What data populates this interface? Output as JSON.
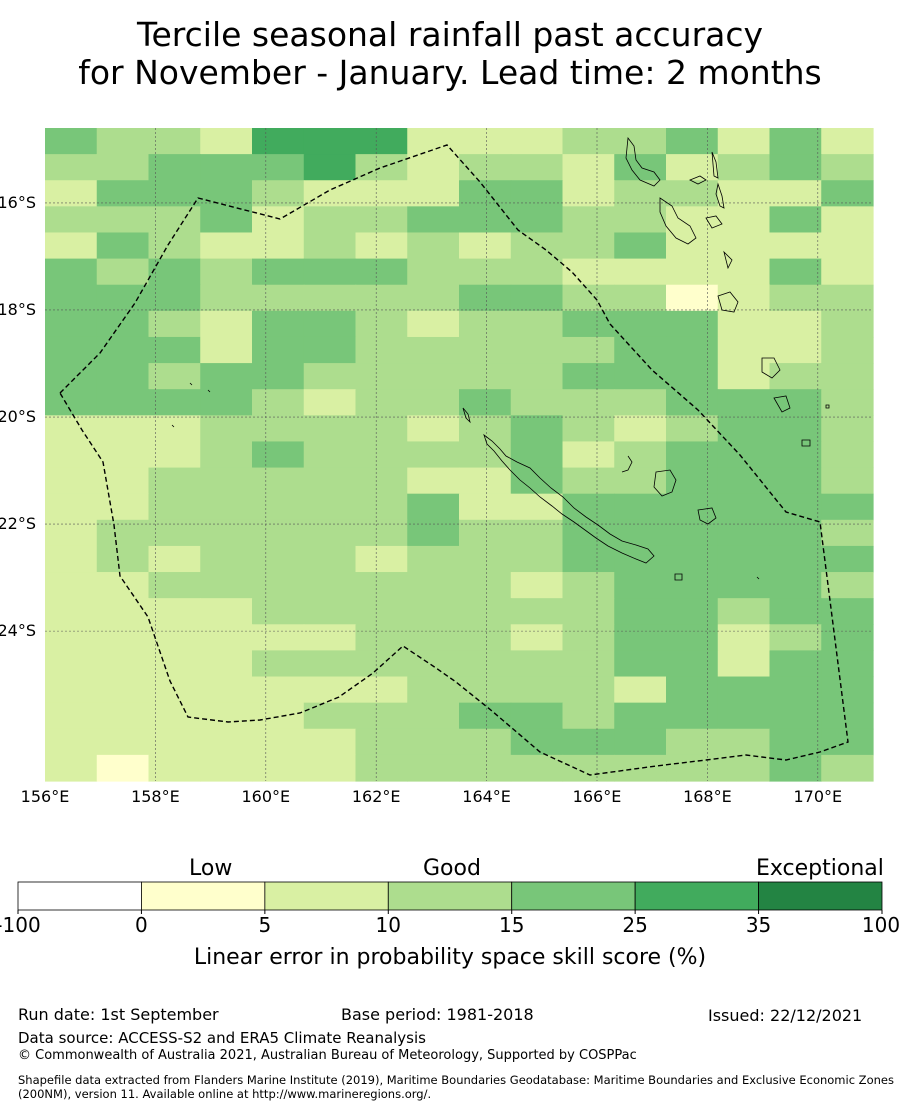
{
  "title": {
    "line1": "Tercile seasonal rainfall past accuracy",
    "line2": "for November - January. Lead time: 2 months"
  },
  "map": {
    "lon_range": [
      156,
      171
    ],
    "lat_range": [
      -26.8,
      -14.6
    ],
    "lon_ticks": [
      {
        "value": 156,
        "label": "156°E"
      },
      {
        "value": 158,
        "label": "158°E"
      },
      {
        "value": 160,
        "label": "160°E"
      },
      {
        "value": 162,
        "label": "162°E"
      },
      {
        "value": 164,
        "label": "164°E"
      },
      {
        "value": 166,
        "label": "166°E"
      },
      {
        "value": 168,
        "label": "168°E"
      },
      {
        "value": 170,
        "label": "170°E"
      }
    ],
    "lat_ticks": [
      {
        "value": -16,
        "label": "16°S"
      },
      {
        "value": -18,
        "label": "18°S"
      },
      {
        "value": -20,
        "label": "20°S"
      },
      {
        "value": -22,
        "label": "22°S"
      },
      {
        "value": -24,
        "label": "24°S"
      }
    ],
    "grid": true,
    "grid_color": "#555555",
    "eez_boundary_style": "dashed",
    "skill_category_grid": [
      "4332555222334242",
      "3344453233242343",
      "2444322244233224",
      "3334233444332242",
      "2432232323342222",
      "4343444333222242",
      "4443333344331233",
      "4432443233444223",
      "4442443333344223",
      "4434433333444233",
      "4444323343334443",
      "2223333234323443",
      "2223433334234443",
      "2233333224334443",
      "2233333422444444",
      "2333333433444443",
      "2323332333444444",
      "2233333332344443",
      "2222333333344344",
      "2222223332344234",
      "2222333333344244",
      "2222222333324444",
      "2222233344344444",
      "2222223334443344",
      "2122223333333343"
    ]
  },
  "colorbar": {
    "category_labels": {
      "low": "Low",
      "good": "Good",
      "exceptional": "Exceptional"
    },
    "bins": [
      {
        "from": -100,
        "to": 0,
        "color": "#ffffff"
      },
      {
        "from": 0,
        "to": 5,
        "color": "#ffffcc"
      },
      {
        "from": 5,
        "to": 10,
        "color": "#d9f0a3"
      },
      {
        "from": 10,
        "to": 15,
        "color": "#addd8e"
      },
      {
        "from": 15,
        "to": 25,
        "color": "#78c679"
      },
      {
        "from": 25,
        "to": 35,
        "color": "#41ab5d"
      },
      {
        "from": 35,
        "to": 100,
        "color": "#238443"
      }
    ],
    "tick_labels": [
      "-100",
      "0",
      "5",
      "10",
      "15",
      "25",
      "35",
      "100"
    ],
    "title": "Linear error in probability space skill score (%)"
  },
  "footer": {
    "run_date": "Run date: 1st September",
    "base_period": "Base period: 1981-2018",
    "issued": "Issued: 22/12/2021",
    "data_source": "Data source: ACCESS-S2 and ERA5 Climate Reanalysis",
    "copyright": "© Commonwealth of Australia 2021, Australian Bureau of Meteorology, Supported by COSPPac",
    "shapefile_note": "Shapefile data extracted from Flanders Marine Institute (2019), Maritime Boundaries Geodatabase: Maritime Boundaries and Exclusive Economic Zones (200NM), version 11. Available online at http://www.marineregions.org/."
  }
}
